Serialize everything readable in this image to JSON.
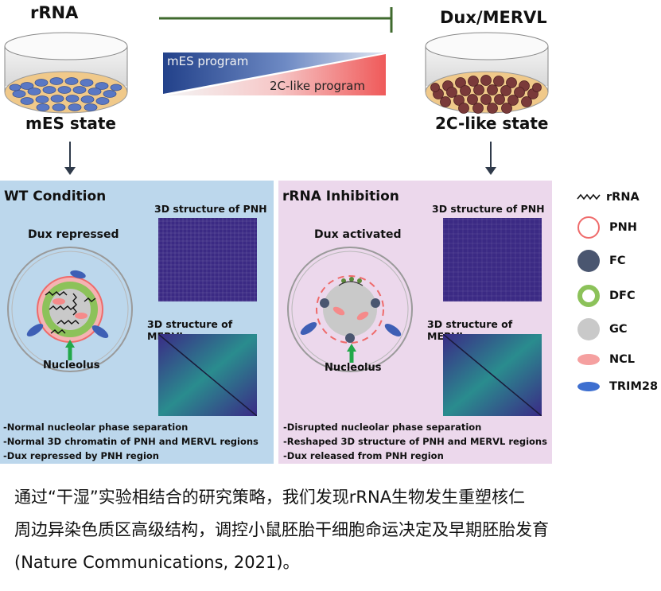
{
  "top": {
    "left_label": "rRNA",
    "right_label": "Dux/MERVL",
    "left_state": "mES state",
    "right_state": "2C-like state",
    "program_top": "mES program",
    "program_bottom": "2C-like program"
  },
  "wt_panel": {
    "title": "WT Condition",
    "dux_label": "Dux repressed",
    "nucleolus_label": "Nucleolus",
    "struct_pnh": "3D structure of PNH",
    "struct_mervl": "3D structure of MERVL",
    "notes": [
      "-Normal nucleolar phase separation",
      "-Normal 3D chromatin of PNH and MERVL regions",
      "-Dux repressed by PNH region"
    ]
  },
  "inh_panel": {
    "title": "rRNA Inhibition",
    "dux_label": "Dux activated",
    "nucleolus_label": "Nucleolus",
    "struct_pnh": "3D structure of PNH",
    "struct_mervl": "3D structure of MERVL",
    "notes": [
      "-Disrupted nucleolar phase separation",
      "-Reshaped 3D structure of PNH and MERVL regions",
      "-Dux released from PNH region"
    ]
  },
  "legend": [
    {
      "label": "rRNA",
      "icon": "wavy-line-icon"
    },
    {
      "label": "PNH",
      "icon": "red-ring-icon"
    },
    {
      "label": "FC",
      "icon": "dark-circle-icon"
    },
    {
      "label": "DFC",
      "icon": "green-ring-icon"
    },
    {
      "label": "GC",
      "icon": "gray-circle-icon"
    },
    {
      "label": "NCL",
      "icon": "pink-ellipse-icon"
    },
    {
      "label": "TRIM28",
      "icon": "blue-ellipse-icon"
    }
  ],
  "caption": [
    "通过“干湿”实验相结合的研究策略，我们发现rRNA生物发生重塑核仁",
    "周边异染色质区高级结构，调控小鼠胚胎干细胞命运决定及早期胚胎发育",
    "(Nature Communications, 2021)。"
  ],
  "colors": {
    "wt_bg": "#bcd7ec",
    "inh_bg": "#ecd8ec",
    "heatmap": "#3b2a84",
    "inhibit_line": "#3f6a2e",
    "mes_cell": "#5a78c4",
    "twoc_cell": "#7a3a3a"
  }
}
